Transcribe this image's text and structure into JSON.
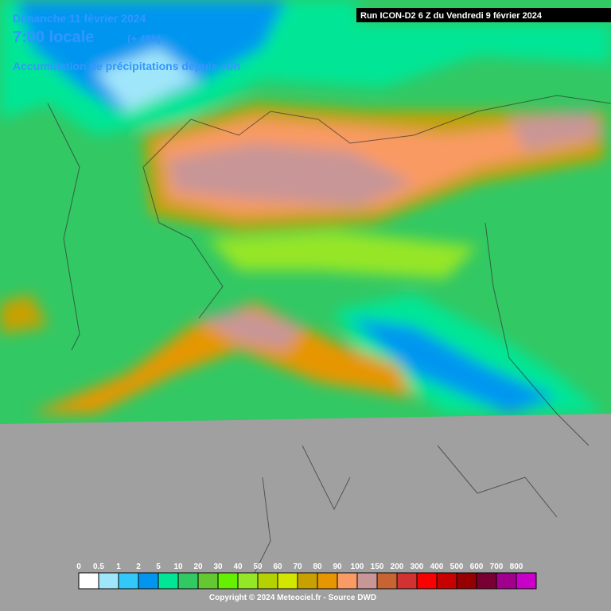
{
  "header": {
    "date": "Dimanche 11 février 2024",
    "time": "7:00 locale",
    "offset": "(+ 48h)",
    "subtitle": "Accumulation de précipitations depuis +0h",
    "run": "Run ICON-D2 6 Z du Vendredi 9 février 2024"
  },
  "legend": {
    "items": [
      {
        "label": "0",
        "color": "#ffffff"
      },
      {
        "label": "0.5",
        "color": "#a0e6fa"
      },
      {
        "label": "1",
        "color": "#32c8fa"
      },
      {
        "label": "2",
        "color": "#0096f0"
      },
      {
        "label": "5",
        "color": "#00e696"
      },
      {
        "label": "10",
        "color": "#32c864"
      },
      {
        "label": "20",
        "color": "#64c832"
      },
      {
        "label": "30",
        "color": "#64f000"
      },
      {
        "label": "40",
        "color": "#96e628"
      },
      {
        "label": "50",
        "color": "#b4d200"
      },
      {
        "label": "60",
        "color": "#d2e600"
      },
      {
        "label": "70",
        "color": "#c8a000"
      },
      {
        "label": "80",
        "color": "#e69600"
      },
      {
        "label": "90",
        "color": "#fa9a64"
      },
      {
        "label": "100",
        "color": "#c89696"
      },
      {
        "label": "150",
        "color": "#c86432"
      },
      {
        "label": "200",
        "color": "#d23232"
      },
      {
        "label": "300",
        "color": "#fa0000"
      },
      {
        "label": "400",
        "color": "#c80000"
      },
      {
        "label": "500",
        "color": "#960000"
      },
      {
        "label": "600",
        "color": "#780032"
      },
      {
        "label": "700",
        "color": "#a0008c"
      },
      {
        "label": "800",
        "color": "#c800c8"
      }
    ]
  },
  "footer": {
    "copyright": "Copyright © 2024 Meteociel.fr - Source DWD"
  }
}
